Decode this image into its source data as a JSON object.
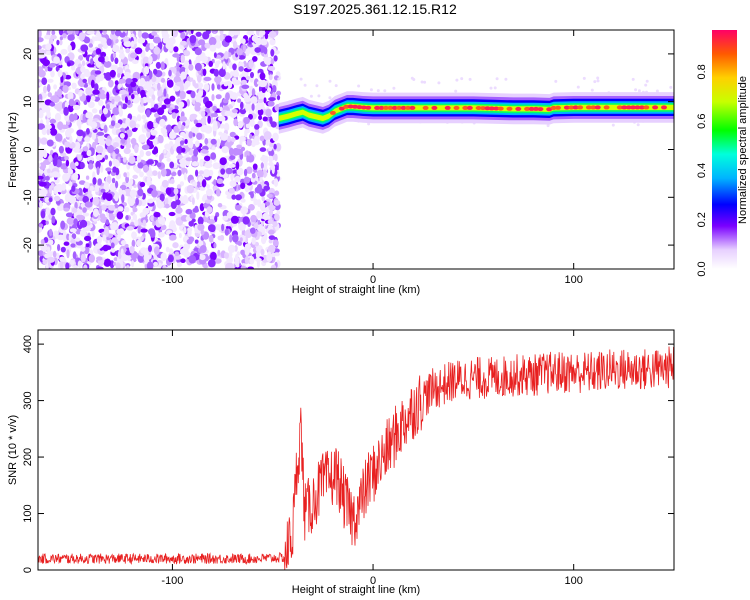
{
  "title": "S197.2025.361.12.15.R12",
  "chart_data": [
    {
      "type": "heatmap",
      "xlabel": "Height of straight line (km)",
      "ylabel": "Frequency (Hz)",
      "xlim": [
        -167,
        150
      ],
      "ylim": [
        -25,
        25
      ],
      "x_ticks": [
        -100,
        0,
        100
      ],
      "y_ticks": [
        -20,
        -10,
        0,
        10,
        20
      ],
      "colorbar": {
        "label": "Normalized spectral amplitude",
        "range": [
          0,
          0.97
        ],
        "ticks": [
          "0.0",
          "0.2",
          "0.4",
          "0.6",
          "0.8"
        ]
      },
      "noise_region_x": [
        -167,
        -47
      ],
      "ridge": {
        "x": [
          -47,
          -42,
          -38,
          -35,
          -32,
          -28,
          -25,
          -22,
          -19,
          -16,
          -13,
          -10,
          -5,
          0,
          10,
          20,
          30,
          40,
          50,
          60,
          70,
          80,
          88,
          90,
          100,
          110,
          120,
          130,
          140,
          150
        ],
        "y": [
          6.5,
          7,
          7.5,
          7.8,
          7.2,
          6.8,
          6.5,
          7,
          8,
          8.5,
          9,
          9,
          8.8,
          8.7,
          8.7,
          8.7,
          8.7,
          8.7,
          8.7,
          8.6,
          8.5,
          8.5,
          8.4,
          8.7,
          8.8,
          8.8,
          8.8,
          8.8,
          8.8,
          8.8
        ]
      }
    },
    {
      "type": "line",
      "xlabel": "Height of straight line (km)",
      "ylabel": "SNR (10 * v/v)",
      "xlim": [
        -167,
        150
      ],
      "ylim": [
        0,
        425
      ],
      "x_ticks": [
        -100,
        0,
        100
      ],
      "y_ticks": [
        0,
        100,
        200,
        300,
        400
      ],
      "line_color": "#e82020",
      "series": [
        {
          "x": [
            -167,
            -150,
            -120,
            -90,
            -60,
            -44,
            -40,
            -38,
            -36,
            -34,
            -30,
            -26,
            -22,
            -18,
            -14,
            -10,
            -6,
            -2,
            0,
            5,
            10,
            15,
            20,
            25,
            30,
            40,
            50,
            60,
            70,
            80,
            90,
            100,
            110,
            120,
            130,
            140,
            150
          ],
          "values": [
            20,
            20,
            20,
            20,
            20,
            22,
            70,
            180,
            250,
            100,
            120,
            150,
            160,
            170,
            120,
            90,
            120,
            160,
            170,
            200,
            230,
            260,
            285,
            305,
            320,
            335,
            340,
            340,
            345,
            345,
            350,
            350,
            350,
            355,
            355,
            355,
            360
          ]
        }
      ]
    }
  ]
}
